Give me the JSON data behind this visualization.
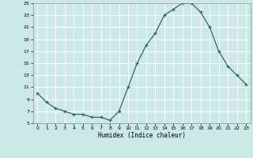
{
  "x": [
    0,
    1,
    2,
    3,
    4,
    5,
    6,
    7,
    8,
    9,
    10,
    11,
    12,
    13,
    14,
    15,
    16,
    17,
    18,
    19,
    20,
    21,
    22,
    23
  ],
  "y": [
    10,
    8.5,
    7.5,
    7,
    6.5,
    6.5,
    6,
    6,
    5.5,
    7,
    11,
    15,
    18,
    20,
    23,
    24,
    25,
    25,
    23.5,
    21,
    17,
    14.5,
    13,
    11.5
  ],
  "xlabel": "Humidex (Indice chaleur)",
  "line_color": "#2e6b5e",
  "marker": "+",
  "bg_color": "#cce8e8",
  "grid_color": "#ffffff",
  "ylim": [
    5,
    25
  ],
  "xlim": [
    -0.5,
    23.5
  ],
  "yticks": [
    5,
    7,
    9,
    11,
    13,
    15,
    17,
    19,
    21,
    23,
    25
  ],
  "xticks": [
    0,
    1,
    2,
    3,
    4,
    5,
    6,
    7,
    8,
    9,
    10,
    11,
    12,
    13,
    14,
    15,
    16,
    17,
    18,
    19,
    20,
    21,
    22,
    23
  ]
}
